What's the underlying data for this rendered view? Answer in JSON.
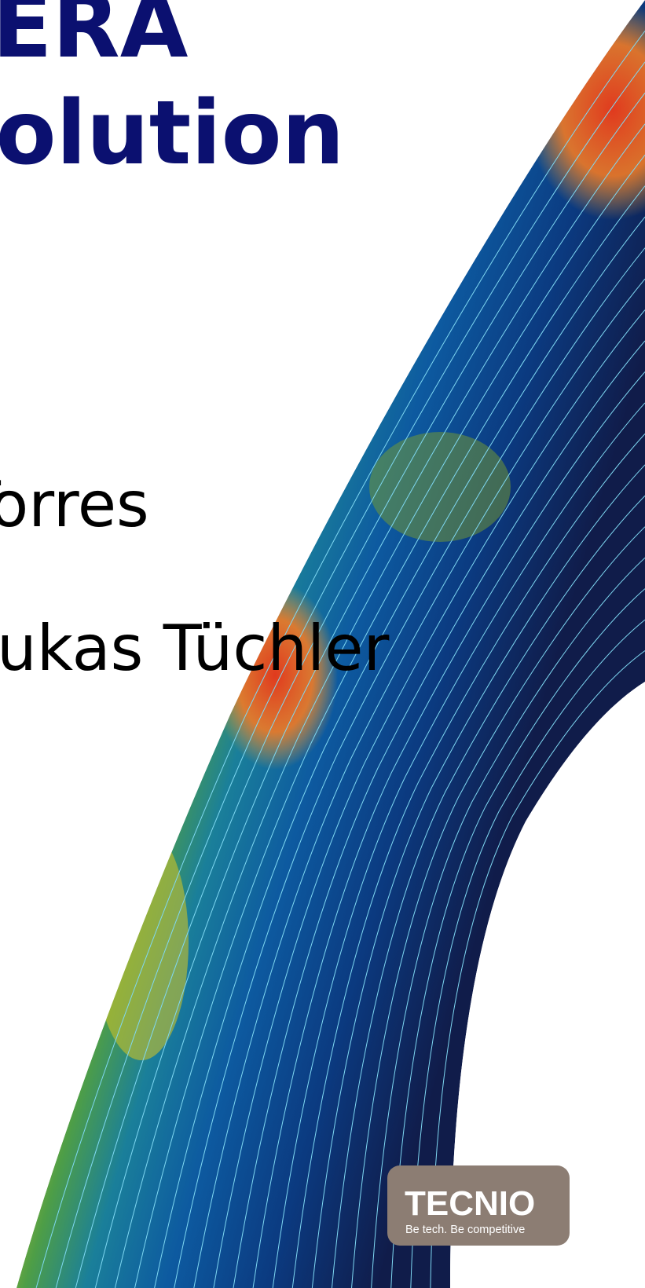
{
  "title": {
    "line1": "ERA",
    "line2": "solution"
  },
  "authors": {
    "name1": "Torres",
    "name2": "ukas Tüchler"
  },
  "logo": {
    "name": "TECNIO",
    "tagline": "Be tech. Be competitive"
  }
}
